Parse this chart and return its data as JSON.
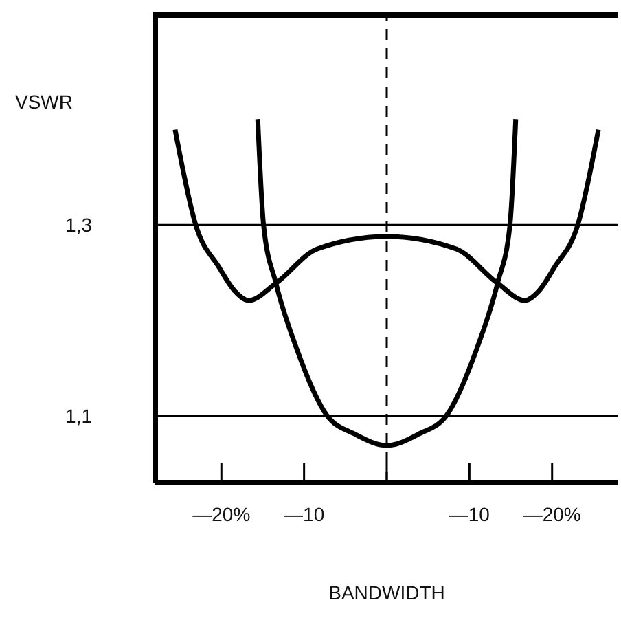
{
  "chart_data": {
    "type": "line",
    "xlabel": "BANDWIDTH",
    "ylabel": "VSWR",
    "xlim": [
      -28,
      28
    ],
    "ylim": [
      1.03,
      1.52
    ],
    "xticks": [
      {
        "value": -20,
        "label": "—20%"
      },
      {
        "value": -10,
        "label": "—10"
      },
      {
        "value": 0,
        "label": null
      },
      {
        "value": 10,
        "label": "—10"
      },
      {
        "value": 20,
        "label": "—20%"
      }
    ],
    "yticks": [
      {
        "value": 1.3,
        "label": "1,3"
      },
      {
        "value": 1.1,
        "label": "1,1"
      }
    ],
    "series": [
      {
        "color": "#000000",
        "x": [
          -25.6,
          -23.1,
          -20.3,
          -18.4,
          -16.7,
          -13.4,
          -8.4,
          0,
          8.4,
          13.4,
          16.7,
          18.4,
          20.3,
          23.1,
          25.6
        ],
        "values": [
          1.4,
          1.3,
          1.256,
          1.231,
          1.221,
          1.239,
          1.275,
          1.288,
          1.275,
          1.239,
          1.221,
          1.231,
          1.256,
          1.3,
          1.4
        ]
      },
      {
        "color": "#000000",
        "x": [
          -15.6,
          -14.9,
          -13.4,
          -11,
          -7.2,
          -3.9,
          0,
          3.9,
          7.2,
          11,
          13.4,
          14.9,
          15.6
        ],
        "values": [
          1.411,
          1.3,
          1.239,
          1.173,
          1.1,
          1.081,
          1.069,
          1.081,
          1.1,
          1.173,
          1.239,
          1.3,
          1.411
        ]
      }
    ],
    "ref_lines": [
      {
        "axis": "y",
        "value": 1.3,
        "color": "#000000",
        "line_style": "solid"
      },
      {
        "axis": "y",
        "value": 1.1,
        "color": "#000000",
        "line_style": "solid"
      },
      {
        "axis": "x",
        "value": 0,
        "color": "#000000",
        "line_style": "dashed"
      }
    ],
    "marker": "none",
    "line_style": "solid"
  }
}
